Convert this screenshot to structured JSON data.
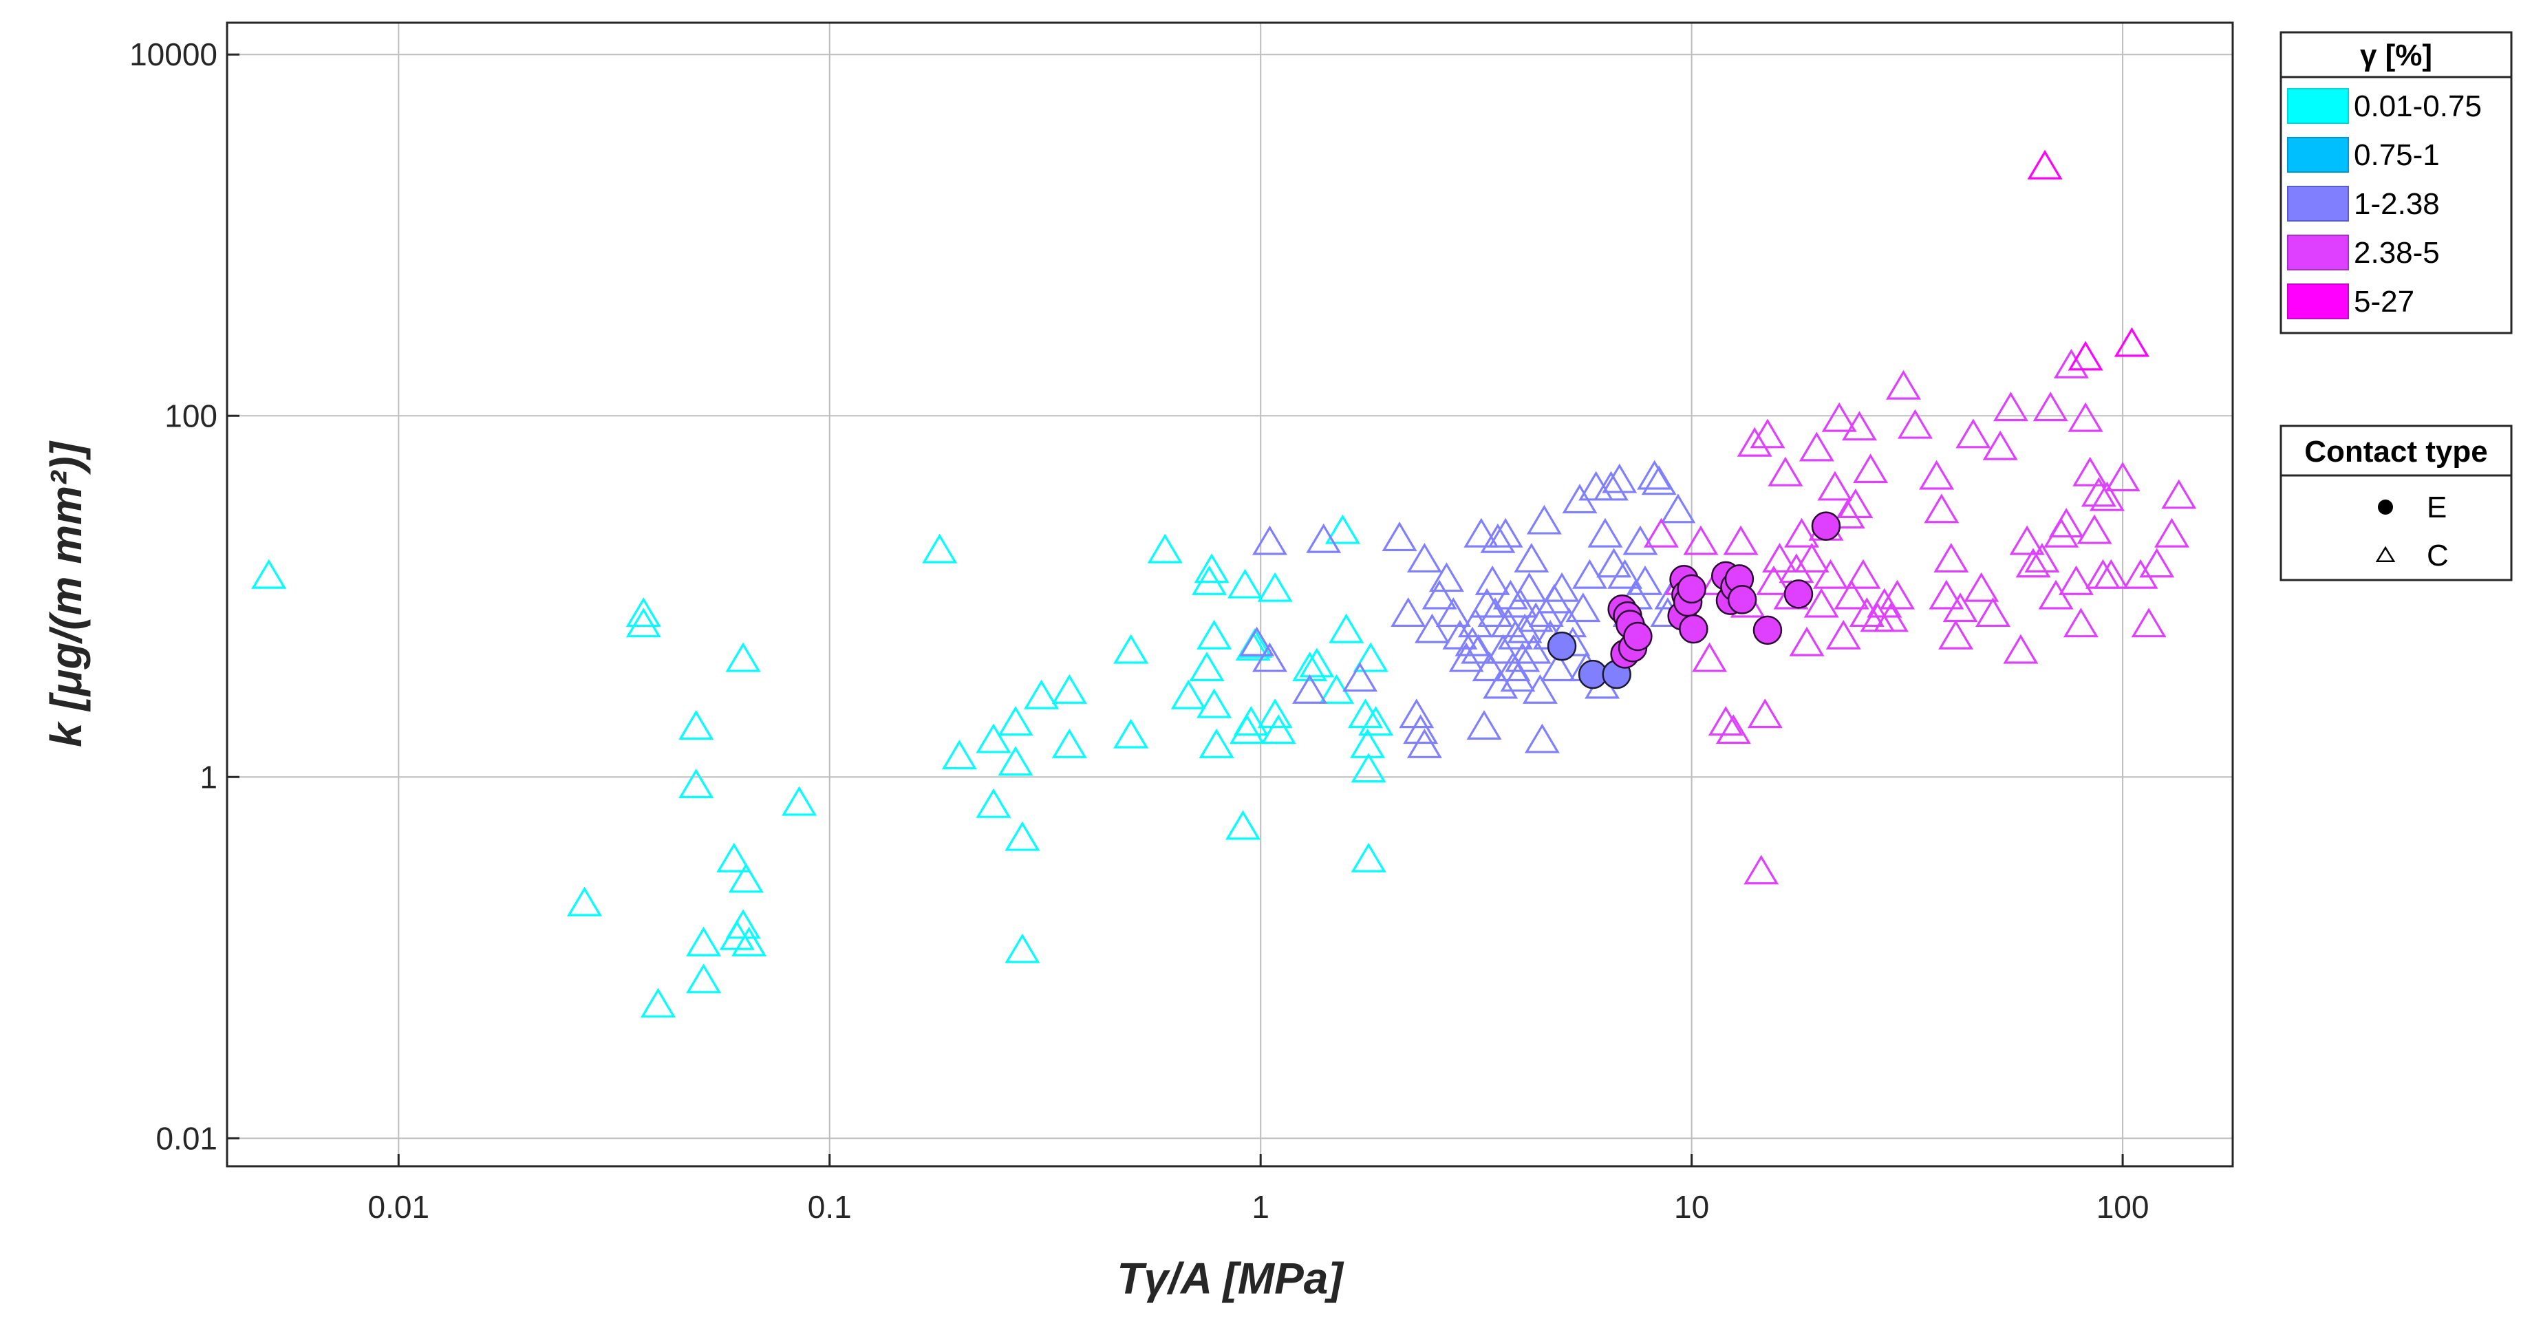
{
  "chart_data": {
    "type": "scatter",
    "title": "",
    "xlabel": "Tγ/A [MPa]",
    "ylabel": "k [μg/(m mm²)]",
    "xscale": "log",
    "yscale": "log",
    "xlim": [
      0.004,
      180
    ],
    "ylim": [
      0.007,
      15000
    ],
    "grid": true,
    "xticks": [
      0.01,
      0.1,
      1,
      10,
      100
    ],
    "xtick_labels": [
      "0.01",
      "0.1",
      "1",
      "10",
      "100"
    ],
    "yticks": [
      0.01,
      1,
      100,
      10000
    ],
    "ytick_labels": [
      "0.01",
      "1",
      "100",
      "10000"
    ],
    "legend_gamma": {
      "title": "γ [%]",
      "entries": [
        {
          "label": "0.01-0.75",
          "color": "#00FFFF",
          "edge": "#00D8D8"
        },
        {
          "label": "0.75-1",
          "color": "#00BFFF",
          "edge": "#0098CC"
        },
        {
          "label": "1-2.38",
          "color": "#8080FF",
          "edge": "#5A5ACC"
        },
        {
          "label": "2.38-5",
          "color": "#DF40FF",
          "edge": "#A830C8"
        },
        {
          "label": "5-27",
          "color": "#FF00FF",
          "edge": "#C800C8"
        }
      ]
    },
    "legend_contact": {
      "title": "Contact type",
      "entries": [
        {
          "label": "E",
          "marker": "circle"
        },
        {
          "label": "C",
          "marker": "triangle"
        }
      ]
    },
    "series": [
      {
        "name": "0.01-0.75 C",
        "contact": "C",
        "color": "#00FFFF",
        "edge": "#00E5E5",
        "marker": "triangle",
        "points": [
          [
            0.005,
            13
          ],
          [
            0.027,
            0.2
          ],
          [
            0.037,
            8
          ],
          [
            0.037,
            7
          ],
          [
            0.04,
            0.055
          ],
          [
            0.049,
            1.9
          ],
          [
            0.049,
            0.9
          ],
          [
            0.051,
            0.12
          ],
          [
            0.051,
            0.075
          ],
          [
            0.06,
            0.35
          ],
          [
            0.061,
            0.13
          ],
          [
            0.063,
            0.15
          ],
          [
            0.063,
            4.5
          ],
          [
            0.064,
            0.27
          ],
          [
            0.065,
            0.12
          ],
          [
            0.085,
            0.72
          ],
          [
            0.18,
            18
          ],
          [
            0.2,
            1.3
          ],
          [
            0.24,
            0.7
          ],
          [
            0.24,
            1.6
          ],
          [
            0.27,
            2
          ],
          [
            0.27,
            1.2
          ],
          [
            0.28,
            0.46
          ],
          [
            0.28,
            0.11
          ],
          [
            0.31,
            2.8
          ],
          [
            0.36,
            3
          ],
          [
            0.36,
            1.5
          ],
          [
            0.5,
            5
          ],
          [
            0.5,
            1.7
          ],
          [
            0.6,
            18
          ],
          [
            0.68,
            2.8
          ],
          [
            0.75,
            4
          ],
          [
            0.76,
            12
          ],
          [
            0.77,
            14
          ],
          [
            0.78,
            6
          ],
          [
            0.78,
            2.5
          ],
          [
            0.79,
            1.5
          ],
          [
            0.91,
            0.53
          ],
          [
            0.92,
            11.5
          ],
          [
            0.93,
            1.8
          ],
          [
            0.95,
            2
          ],
          [
            0.96,
            5.2
          ],
          [
            0.97,
            5.4
          ],
          [
            1.08,
            11
          ],
          [
            1.08,
            2.2
          ],
          [
            1.1,
            1.8
          ],
          [
            1.3,
            4
          ],
          [
            1.35,
            4.2
          ],
          [
            1.5,
            3
          ],
          [
            1.55,
            23
          ],
          [
            1.58,
            6.5
          ],
          [
            1.75,
            2.2
          ],
          [
            1.77,
            1.5
          ],
          [
            1.78,
            1.1
          ],
          [
            1.78,
            0.35
          ],
          [
            1.8,
            4.5
          ],
          [
            1.85,
            2
          ]
        ]
      },
      {
        "name": "1-2.38 C",
        "contact": "C",
        "color": "#8080FF",
        "edge": "#9494FF",
        "marker": "triangle",
        "points": [
          [
            0.98,
            5.5
          ],
          [
            1.05,
            20
          ],
          [
            1.05,
            4.5
          ],
          [
            1.3,
            3
          ],
          [
            1.4,
            20.5
          ],
          [
            1.7,
            3.5
          ],
          [
            2.1,
            21
          ],
          [
            2.2,
            8
          ],
          [
            2.3,
            2.2
          ],
          [
            2.35,
            1.8
          ],
          [
            2.4,
            1.5
          ],
          [
            2.4,
            16
          ],
          [
            2.5,
            6.5
          ],
          [
            2.6,
            10
          ],
          [
            2.7,
            12.5
          ],
          [
            2.8,
            8
          ],
          [
            2.9,
            6
          ],
          [
            3.0,
            4.5
          ],
          [
            3.1,
            5.5
          ],
          [
            3.15,
            7
          ],
          [
            3.2,
            5
          ],
          [
            3.25,
            22
          ],
          [
            3.3,
            1.9
          ],
          [
            3.35,
            9
          ],
          [
            3.4,
            4
          ],
          [
            3.45,
            12
          ],
          [
            3.5,
            8
          ],
          [
            3.55,
            20.5
          ],
          [
            3.6,
            3.2
          ],
          [
            3.65,
            5
          ],
          [
            3.7,
            22
          ],
          [
            3.75,
            7
          ],
          [
            3.8,
            10
          ],
          [
            3.85,
            4
          ],
          [
            3.9,
            6
          ],
          [
            3.95,
            3.5
          ],
          [
            4.0,
            9
          ],
          [
            4.05,
            4.5
          ],
          [
            4.1,
            6.5
          ],
          [
            4.2,
            11
          ],
          [
            4.25,
            16
          ],
          [
            4.3,
            5
          ],
          [
            4.35,
            7.5
          ],
          [
            4.45,
            3
          ],
          [
            4.5,
            1.6
          ],
          [
            4.55,
            26
          ],
          [
            4.6,
            8
          ],
          [
            4.7,
            6
          ],
          [
            4.8,
            9.5
          ],
          [
            4.9,
            4
          ],
          [
            5.0,
            11
          ],
          [
            5.2,
            7
          ],
          [
            5.3,
            5.5
          ],
          [
            5.5,
            34
          ],
          [
            5.6,
            8.5
          ],
          [
            5.7,
            4
          ],
          [
            5.8,
            13
          ],
          [
            6.0,
            40
          ],
          [
            6.2,
            3.2
          ],
          [
            6.3,
            22
          ],
          [
            6.5,
            40
          ],
          [
            6.6,
            15
          ],
          [
            6.8,
            44
          ],
          [
            7.0,
            13
          ],
          [
            7.2,
            8
          ],
          [
            7.4,
            10
          ],
          [
            7.6,
            20
          ],
          [
            7.8,
            12
          ],
          [
            8.2,
            46
          ],
          [
            8.4,
            43
          ],
          [
            8.8,
            8
          ],
          [
            9.0,
            10
          ],
          [
            9.3,
            30
          ]
        ]
      },
      {
        "name": "2.38-5 C",
        "contact": "C",
        "color": "#DF40FF",
        "edge": "#E060FF",
        "marker": "triangle",
        "points": [
          [
            8.5,
            22
          ],
          [
            9.5,
            12
          ],
          [
            10.5,
            20
          ],
          [
            11.0,
            4.5
          ],
          [
            11.5,
            12
          ],
          [
            12.0,
            2
          ],
          [
            12.5,
            1.8
          ],
          [
            13.0,
            20
          ],
          [
            13.5,
            9
          ],
          [
            14.0,
            70
          ],
          [
            14.5,
            0.3
          ],
          [
            14.8,
            2.2
          ],
          [
            15.0,
            78
          ],
          [
            15.5,
            12
          ],
          [
            16.0,
            16
          ],
          [
            16.5,
            48
          ],
          [
            17.0,
            10
          ],
          [
            17.5,
            14
          ],
          [
            18.0,
            22
          ],
          [
            18.5,
            5.5
          ],
          [
            19.0,
            16
          ],
          [
            19.5,
            66
          ],
          [
            20.0,
            9
          ],
          [
            20.5,
            24
          ],
          [
            21.0,
            13
          ],
          [
            21.5,
            40
          ],
          [
            22.0,
            96
          ],
          [
            22.5,
            6
          ],
          [
            23.0,
            28
          ],
          [
            23.5,
            10
          ],
          [
            24.0,
            32
          ],
          [
            24.5,
            86
          ],
          [
            25.0,
            13
          ],
          [
            25.5,
            8
          ],
          [
            26.0,
            50
          ],
          [
            27.0,
            7.5
          ],
          [
            28.0,
            9
          ],
          [
            29.0,
            7.5
          ],
          [
            30.0,
            10
          ],
          [
            31.0,
            145
          ],
          [
            33.0,
            88
          ],
          [
            37.0,
            46
          ],
          [
            38.0,
            30
          ],
          [
            39.0,
            10
          ],
          [
            40.0,
            16
          ],
          [
            41.0,
            6
          ],
          [
            42.0,
            8.5
          ],
          [
            45.0,
            78
          ],
          [
            47.0,
            11
          ],
          [
            50.0,
            8
          ],
          [
            52.0,
            67
          ],
          [
            55.0,
            110
          ],
          [
            58.0,
            5
          ],
          [
            60.0,
            20
          ],
          [
            62.0,
            15
          ],
          [
            65.0,
            16
          ],
          [
            68.0,
            110
          ],
          [
            70.0,
            10
          ],
          [
            72.0,
            22
          ],
          [
            74.0,
            25
          ],
          [
            76.0,
            190
          ],
          [
            78.0,
            12
          ],
          [
            80.0,
            7
          ],
          [
            82.0,
            96
          ],
          [
            84.0,
            48
          ],
          [
            86.0,
            23
          ],
          [
            88.0,
            37
          ],
          [
            90.0,
            13
          ],
          [
            92.0,
            35
          ],
          [
            94.0,
            13
          ],
          [
            100.0,
            45
          ],
          [
            110.0,
            13
          ],
          [
            115.0,
            7
          ],
          [
            120.0,
            15
          ],
          [
            130.0,
            22
          ],
          [
            135.0,
            36
          ]
        ]
      },
      {
        "name": "5-27 C",
        "contact": "C",
        "color": "#FF00FF",
        "edge": "#FF33FF",
        "marker": "triangle",
        "points": [
          [
            66.0,
            2400
          ],
          [
            82.0,
            210
          ],
          [
            105.0,
            250
          ]
        ]
      },
      {
        "name": "1-2.38 E",
        "contact": "E",
        "color": "#8080FF",
        "edge": "#1a1a33",
        "marker": "circle",
        "points": [
          [
            5.0,
            5.3
          ],
          [
            5.9,
            3.7
          ],
          [
            6.7,
            3.7
          ]
        ]
      },
      {
        "name": "2.38-5 E",
        "contact": "E",
        "color": "#DF40FF",
        "edge": "#2a0a30",
        "marker": "circle",
        "points": [
          [
            6.9,
            8.5
          ],
          [
            7.0,
            4.8
          ],
          [
            7.1,
            7.8
          ],
          [
            7.2,
            7
          ],
          [
            7.3,
            5.2
          ],
          [
            7.5,
            6
          ],
          [
            9.5,
            7.8
          ],
          [
            9.6,
            12.4
          ],
          [
            9.7,
            10.2
          ],
          [
            9.8,
            9.3
          ],
          [
            10.0,
            11
          ],
          [
            10.1,
            6.6
          ],
          [
            12.0,
            13
          ],
          [
            12.3,
            9.5
          ],
          [
            12.6,
            11.3
          ],
          [
            12.9,
            12.5
          ],
          [
            13.1,
            9.6
          ],
          [
            15.0,
            6.5
          ],
          [
            17.7,
            10.3
          ],
          [
            20.5,
            24.5
          ]
        ]
      }
    ]
  }
}
